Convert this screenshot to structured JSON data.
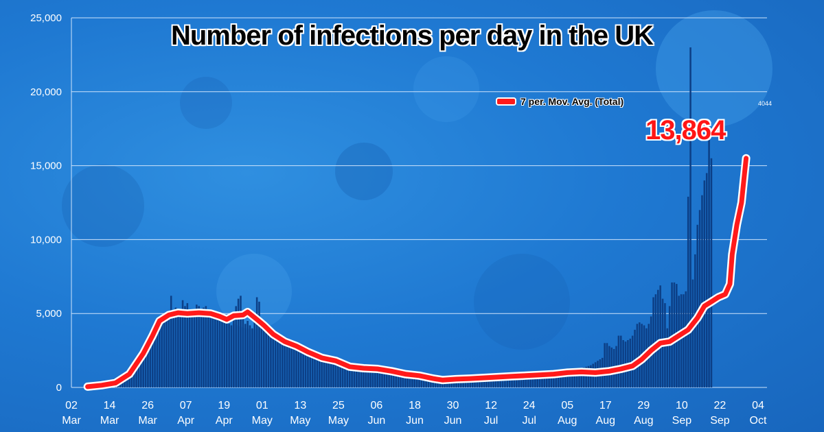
{
  "chart_data": {
    "type": "bar",
    "title": "Number of infections per day in the UK",
    "xlabel": "",
    "ylabel": "",
    "ylim": [
      0,
      25000
    ],
    "yticks": [
      0,
      5000,
      10000,
      15000,
      20000,
      25000
    ],
    "ytick_labels": [
      "0",
      "5,000",
      "10,000",
      "15,000",
      "20,000",
      "25,000"
    ],
    "xtick_labels": [
      {
        "day": "02",
        "month": "Mar"
      },
      {
        "day": "14",
        "month": "Mar"
      },
      {
        "day": "26",
        "month": "Mar"
      },
      {
        "day": "07",
        "month": "Apr"
      },
      {
        "day": "19",
        "month": "Apr"
      },
      {
        "day": "01",
        "month": "May"
      },
      {
        "day": "13",
        "month": "May"
      },
      {
        "day": "25",
        "month": "May"
      },
      {
        "day": "06",
        "month": "Jun"
      },
      {
        "day": "18",
        "month": "Jun"
      },
      {
        "day": "30",
        "month": "Jun"
      },
      {
        "day": "12",
        "month": "Jul"
      },
      {
        "day": "24",
        "month": "Jul"
      },
      {
        "day": "05",
        "month": "Aug"
      },
      {
        "day": "17",
        "month": "Aug"
      },
      {
        "day": "29",
        "month": "Aug"
      },
      {
        "day": "10",
        "month": "Sep"
      },
      {
        "day": "22",
        "month": "Sep"
      },
      {
        "day": "04",
        "month": "Oct"
      }
    ],
    "grid": true,
    "legend_position": "top-right",
    "annotation": "13,864",
    "mini_annotation": "4044",
    "series": [
      {
        "name": "7 per. Mov. Avg. (Total)",
        "type": "line",
        "color": "#ff1a1a",
        "points": [
          [
            7,
            50
          ],
          [
            13,
            150
          ],
          [
            19,
            300
          ],
          [
            25,
            900
          ],
          [
            31,
            2300
          ],
          [
            35,
            3500
          ],
          [
            38,
            4500
          ],
          [
            42,
            4900
          ],
          [
            46,
            5050
          ],
          [
            50,
            5000
          ],
          [
            55,
            5050
          ],
          [
            60,
            5000
          ],
          [
            64,
            4800
          ],
          [
            67,
            4600
          ],
          [
            70,
            4850
          ],
          [
            74,
            4900
          ],
          [
            76,
            5100
          ],
          [
            80,
            4600
          ],
          [
            83,
            4200
          ],
          [
            87,
            3600
          ],
          [
            92,
            3100
          ],
          [
            97,
            2800
          ],
          [
            102,
            2400
          ],
          [
            108,
            2000
          ],
          [
            114,
            1800
          ],
          [
            120,
            1400
          ],
          [
            126,
            1300
          ],
          [
            132,
            1250
          ],
          [
            138,
            1100
          ],
          [
            144,
            900
          ],
          [
            150,
            800
          ],
          [
            156,
            600
          ],
          [
            160,
            500
          ],
          [
            166,
            560
          ],
          [
            172,
            600
          ],
          [
            178,
            650
          ],
          [
            184,
            700
          ],
          [
            190,
            750
          ],
          [
            196,
            800
          ],
          [
            202,
            850
          ],
          [
            208,
            900
          ],
          [
            214,
            1000
          ],
          [
            220,
            1050
          ],
          [
            226,
            1000
          ],
          [
            232,
            1100
          ],
          [
            237,
            1250
          ],
          [
            242,
            1450
          ],
          [
            246,
            1900
          ],
          [
            250,
            2500
          ],
          [
            254,
            3000
          ],
          [
            258,
            3100
          ],
          [
            262,
            3500
          ],
          [
            266,
            3900
          ],
          [
            270,
            4700
          ],
          [
            273,
            5500
          ],
          [
            276,
            5800
          ],
          [
            279,
            6100
          ],
          [
            282,
            6300
          ],
          [
            284,
            7000
          ],
          [
            285,
            9000
          ],
          [
            287,
            11000
          ],
          [
            289,
            12500
          ],
          [
            290,
            14000
          ],
          [
            291,
            15500
          ]
        ]
      },
      {
        "name": "Total",
        "type": "bar",
        "color": "#0c3f86",
        "start_day": 0,
        "values": [
          0,
          0,
          0,
          0,
          0,
          0,
          0,
          50,
          50,
          60,
          80,
          100,
          120,
          150,
          180,
          200,
          230,
          250,
          280,
          320,
          380,
          450,
          520,
          600,
          700,
          800,
          950,
          1100,
          1350,
          1600,
          1800,
          2200,
          2600,
          2900,
          3200,
          3500,
          3700,
          4500,
          4500,
          4700,
          4400,
          4900,
          5100,
          6200,
          4900,
          5400,
          5200,
          5000,
          5900,
          5500,
          5700,
          5000,
          4800,
          5300,
          5600,
          5500,
          5000,
          5400,
          5500,
          5000,
          4700,
          4800,
          4900,
          4600,
          4700,
          4600,
          4500,
          4400,
          4300,
          4200,
          4600,
          5500,
          6000,
          6200,
          5200,
          4300,
          4500,
          4200,
          4000,
          4800,
          6100,
          5800,
          4400,
          4300,
          4200,
          3900,
          3600,
          3500,
          3400,
          3500,
          3200,
          3300,
          3000,
          3100,
          2900,
          2800,
          2700,
          2500,
          2600,
          2500,
          2300,
          2300,
          2200,
          2200,
          2100,
          2000,
          2000,
          1900,
          1800,
          1800,
          1800,
          1700,
          1700,
          1600,
          1600,
          1500,
          1500,
          1400,
          1400,
          1300,
          1300,
          1300,
          1300,
          1200,
          1200,
          1200,
          1200,
          1200,
          1100,
          1100,
          1100,
          1100,
          1000,
          1000,
          1000,
          950,
          900,
          900,
          900,
          850,
          850,
          800,
          800,
          750,
          750,
          700,
          650,
          600,
          600,
          550,
          500,
          500,
          500,
          500,
          550,
          550,
          550,
          600,
          600,
          600,
          600,
          650,
          600,
          600,
          650,
          650,
          650,
          650,
          700,
          700,
          700,
          700,
          700,
          750,
          750,
          750,
          750,
          750,
          800,
          800,
          800,
          800,
          800,
          850,
          850,
          850,
          850,
          900,
          900,
          900,
          900,
          900,
          950,
          950,
          950,
          1000,
          1000,
          1000,
          1050,
          1050,
          1050,
          1050,
          1000,
          1000,
          1000,
          1000,
          1000,
          1000,
          1050,
          1050,
          1100,
          1100,
          1100,
          1150,
          1200,
          1200,
          1200,
          1250,
          1250,
          1300,
          1300,
          1350,
          1400,
          1450,
          1500,
          1600,
          1700,
          1800,
          1900,
          2000,
          3000,
          3000,
          2800,
          2700,
          2600,
          2800,
          3500,
          3500,
          3200,
          3100,
          3200,
          3300,
          3500,
          3900,
          4300,
          4400,
          4300,
          4200,
          4000,
          4300,
          4800,
          6100,
          6300,
          6600,
          6900,
          6000,
          5700,
          4000,
          5500,
          7100,
          7100,
          7000,
          6200,
          6300,
          6300,
          6500,
          12900,
          23000,
          7300,
          9000,
          11000,
          12000,
          13000,
          14000,
          14500,
          17500,
          15500
        ]
      }
    ]
  },
  "colors": {
    "background": "#1f79d2",
    "grid": "#cfe4fb",
    "bars": "#0c3f86",
    "line": "#ff1a1a",
    "axis_text": "#ffffff",
    "title_text": "#000000",
    "callout_text": "#ff1515"
  }
}
